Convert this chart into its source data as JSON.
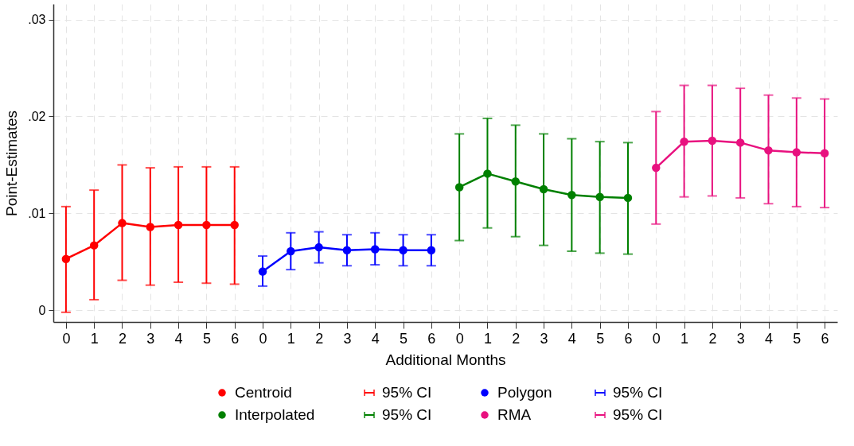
{
  "chart_data": {
    "type": "line",
    "xlabel": "Additional Months",
    "ylabel": "Point-Estimates",
    "categories": [
      "0",
      "1",
      "2",
      "3",
      "4",
      "5",
      "6",
      "0",
      "1",
      "2",
      "3",
      "4",
      "5",
      "6",
      "0",
      "1",
      "2",
      "3",
      "4",
      "5",
      "6",
      "0",
      "1",
      "2",
      "3",
      "4",
      "5",
      "6"
    ],
    "series": [
      {
        "name": "Centroid",
        "color": "#ff0000",
        "values": [
          0.0053,
          0.0067,
          0.009,
          0.0086,
          0.0088,
          0.0088,
          0.0088,
          null,
          null,
          null,
          null,
          null,
          null,
          null,
          null,
          null,
          null,
          null,
          null,
          null,
          null,
          null,
          null,
          null,
          null,
          null,
          null,
          null
        ],
        "errors": [
          [
            -0.0002,
            0.0107
          ],
          [
            0.0011,
            0.0124
          ],
          [
            0.0031,
            0.015
          ],
          [
            0.0026,
            0.0147
          ],
          [
            0.0029,
            0.0148
          ],
          [
            0.0028,
            0.0148
          ],
          [
            0.0027,
            0.0148
          ],
          null,
          null,
          null,
          null,
          null,
          null,
          null,
          null,
          null,
          null,
          null,
          null,
          null,
          null,
          null,
          null,
          null,
          null,
          null,
          null,
          null
        ]
      },
      {
        "name": "Polygon",
        "color": "#0000ff",
        "values": [
          null,
          null,
          null,
          null,
          null,
          null,
          null,
          0.004,
          0.0061,
          0.0065,
          0.0062,
          0.0063,
          0.0062,
          0.0062,
          null,
          null,
          null,
          null,
          null,
          null,
          null,
          null,
          null,
          null,
          null,
          null,
          null,
          null
        ],
        "errors": [
          null,
          null,
          null,
          null,
          null,
          null,
          null,
          [
            0.0025,
            0.0056
          ],
          [
            0.0042,
            0.008
          ],
          [
            0.0049,
            0.0081
          ],
          [
            0.0046,
            0.0078
          ],
          [
            0.0047,
            0.008
          ],
          [
            0.0046,
            0.0078
          ],
          [
            0.0046,
            0.0078
          ],
          null,
          null,
          null,
          null,
          null,
          null,
          null,
          null,
          null,
          null,
          null,
          null,
          null,
          null
        ]
      },
      {
        "name": "Interpolated",
        "color": "#008000",
        "values": [
          null,
          null,
          null,
          null,
          null,
          null,
          null,
          null,
          null,
          null,
          null,
          null,
          null,
          null,
          0.0127,
          0.0141,
          0.0133,
          0.0125,
          0.0119,
          0.0117,
          0.0116,
          null,
          null,
          null,
          null,
          null,
          null,
          null
        ],
        "errors": [
          null,
          null,
          null,
          null,
          null,
          null,
          null,
          null,
          null,
          null,
          null,
          null,
          null,
          null,
          [
            0.0072,
            0.0182
          ],
          [
            0.0085,
            0.0198
          ],
          [
            0.0076,
            0.0191
          ],
          [
            0.0067,
            0.0182
          ],
          [
            0.0061,
            0.0177
          ],
          [
            0.0059,
            0.0174
          ],
          [
            0.0058,
            0.0173
          ],
          null,
          null,
          null,
          null,
          null,
          null,
          null
        ]
      },
      {
        "name": "RMA",
        "color": "#e8117f",
        "values": [
          null,
          null,
          null,
          null,
          null,
          null,
          null,
          null,
          null,
          null,
          null,
          null,
          null,
          null,
          null,
          null,
          null,
          null,
          null,
          null,
          null,
          0.0147,
          0.0174,
          0.0175,
          0.0173,
          0.0165,
          0.0163,
          0.0162
        ],
        "errors": [
          null,
          null,
          null,
          null,
          null,
          null,
          null,
          null,
          null,
          null,
          null,
          null,
          null,
          null,
          null,
          null,
          null,
          null,
          null,
          null,
          null,
          [
            0.0089,
            0.0205
          ],
          [
            0.0117,
            0.0232
          ],
          [
            0.0118,
            0.0232
          ],
          [
            0.0116,
            0.0229
          ],
          [
            0.011,
            0.0222
          ],
          [
            0.0107,
            0.0219
          ],
          [
            0.0106,
            0.0218
          ]
        ]
      }
    ],
    "annotations": [
      "95% CI",
      "95% CI",
      "95% CI",
      "95% CI"
    ],
    "ylim": [
      -0.0012,
      0.0316
    ],
    "yticks": [
      0,
      {
        "value": 0.01,
        "label": ".01"
      },
      {
        "value": 0.02,
        "label": ".02"
      },
      {
        "value": 0.03,
        "label": ".03"
      }
    ],
    "grid": true,
    "legend": "bottom",
    "marker": "circle",
    "line_style": "solid"
  }
}
